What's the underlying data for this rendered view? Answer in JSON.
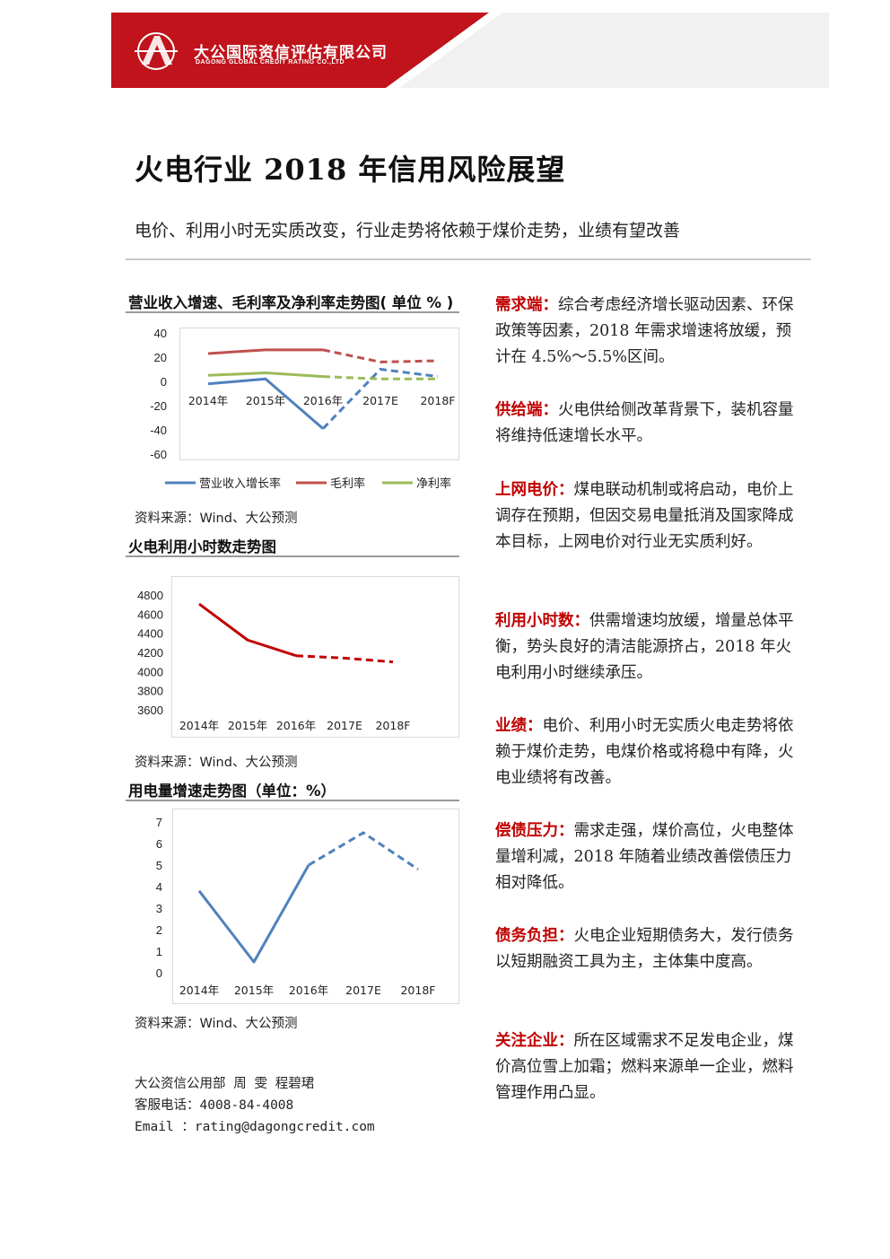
{
  "header": {
    "company_cn": "大公国际资信评估有限公司",
    "company_en": "DAGONG GLOBAL CREDIT RATING CO.,LTD",
    "brand_color": "#c0131b"
  },
  "title": "火电行业 2018 年信用风险展望",
  "subtitle": "电价、利用小时无实质改变，行业走势将依赖于煤价走势，业绩有望改善",
  "charts": {
    "chart1": {
      "title": "营业收入增速、毛利率及净利率走势图( 单位 % )",
      "source": "资料来源：Wind、大公预测",
      "legend": [
        "营业收入增长率",
        "毛利率",
        "净利率"
      ]
    },
    "chart2": {
      "title": "火电利用小时数走势图",
      "source": "资料来源：Wind、大公预测"
    },
    "chart3": {
      "title": "用电量增速走势图（单位：%）",
      "source": "资料来源：Wind、大公预测"
    }
  },
  "chart_data": [
    {
      "type": "line",
      "title": "营业收入增速、毛利率及净利率走势图( 单位 % )",
      "categories": [
        "2014年",
        "2015年",
        "2016年",
        "2017E",
        "2018F"
      ],
      "ylim": [
        -60,
        40
      ],
      "yticks": [
        40,
        20,
        0,
        -20,
        -40,
        -60
      ],
      "forecast_from_index": 2,
      "legend_position": "bottom",
      "series": [
        {
          "name": "营业收入增长率",
          "color": "#4f81bd",
          "values": [
            -2,
            2,
            -39,
            10,
            4
          ]
        },
        {
          "name": "毛利率",
          "color": "#c0504d",
          "values": [
            23,
            26,
            26,
            16,
            17
          ]
        },
        {
          "name": "净利率",
          "color": "#9bbb59",
          "values": [
            5,
            7,
            4,
            2,
            2
          ]
        }
      ]
    },
    {
      "type": "line",
      "title": "火电利用小时数走势图",
      "categories": [
        "2014年",
        "2015年",
        "2016年",
        "2017E",
        "2018F"
      ],
      "ylim": [
        3600,
        4800
      ],
      "yticks": [
        4800,
        4600,
        4400,
        4200,
        4000,
        3800,
        3600
      ],
      "forecast_from_index": 2,
      "series": [
        {
          "color": "#c00000",
          "values": [
            4706,
            4329,
            4165,
            4140,
            4100
          ]
        }
      ]
    },
    {
      "type": "line",
      "title": "用电量增速走势图（单位：%）",
      "categories": [
        "2014年",
        "2015年",
        "2016年",
        "2017E",
        "2018F"
      ],
      "ylim": [
        0,
        7
      ],
      "yticks": [
        7,
        6,
        5,
        4,
        3,
        2,
        1,
        0
      ],
      "forecast_from_index": 2,
      "series": [
        {
          "color": "#4f81bd",
          "values": [
            3.8,
            0.5,
            5.0,
            6.5,
            4.8
          ]
        }
      ]
    }
  ],
  "contact": {
    "line1": "大公资信公用部   周   雯   程碧珺",
    "line2": "客服电话：4008-84-4008",
    "line3": "Email    ：rating@dagongcredit.com"
  },
  "sections": [
    {
      "label": "需求端：",
      "text": "综合考虑经济增长驱动因素、环保政策等因素，2018 年需求增速将放缓，预计在 4.5%～5.5%区间。"
    },
    {
      "label": "供给端：",
      "text": "火电供给侧改革背景下，装机容量将维持低速增长水平。"
    },
    {
      "label": "上网电价：",
      "text": "煤电联动机制或将启动，电价上调存在预期，但因交易电量抵消及国家降成本目标，上网电价对行业无实质利好。"
    },
    {
      "label": "利用小时数：",
      "text": "供需增速均放缓，增量总体平衡，势头良好的清洁能源挤占，2018 年火电利用小时继续承压。"
    },
    {
      "label": "业绩：",
      "text": "电价、利用小时无实质火电走势将依赖于煤价走势，电煤价格或将稳中有降，火电业绩将有改善。"
    },
    {
      "label": "偿债压力：",
      "text": "需求走强，煤价高位，火电整体量增利减，2018 年随着业绩改善偿债压力相对降低。"
    },
    {
      "label": "债务负担：",
      "text": "火电企业短期债务大，发行债务以短期融资工具为主，主体集中度高。"
    },
    {
      "label": "关注企业：",
      "text": "所在区域需求不足发电企业，煤价高位雪上加霜；燃料来源单一企业，燃料管理作用凸显。"
    }
  ]
}
